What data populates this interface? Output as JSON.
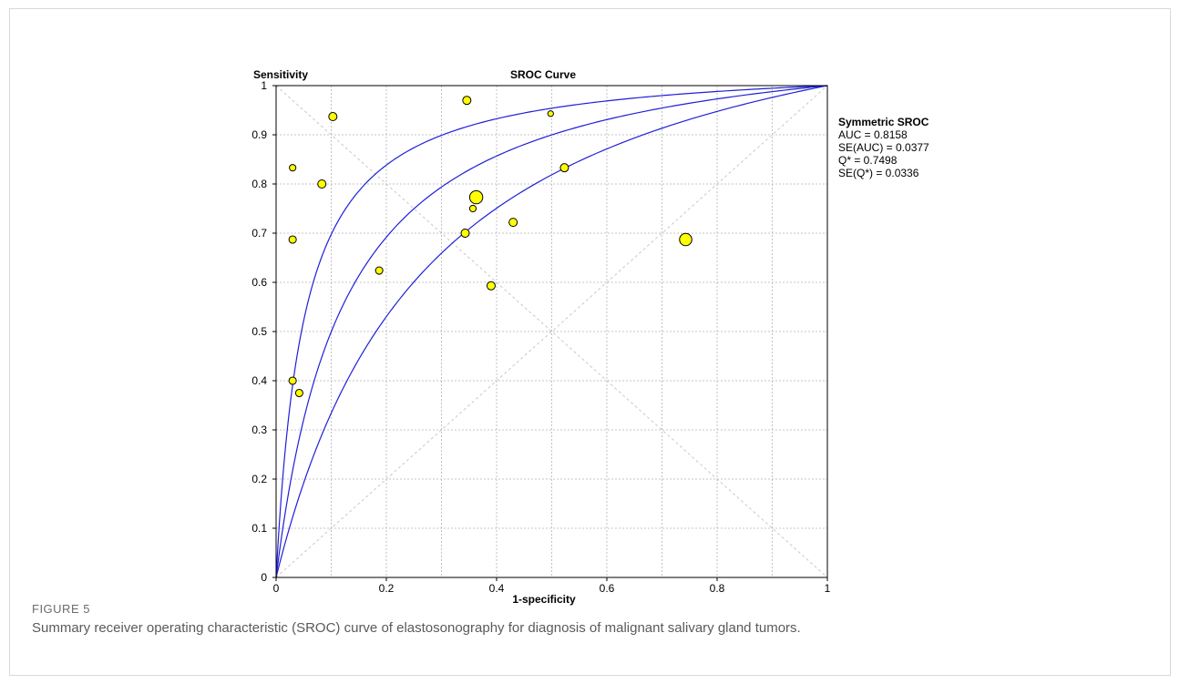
{
  "figure": {
    "label": "FIGURE 5",
    "caption": "Summary receiver operating characteristic (SROC) curve of elastosonography for diagnosis of malignant salivary gland tumors."
  },
  "chart_data": {
    "type": "scatter",
    "title": "SROC Curve",
    "xlabel": "1-specificity",
    "ylabel": "Sensitivity",
    "xlim": [
      0,
      1
    ],
    "ylim": [
      0,
      1
    ],
    "x_ticks": [
      "0",
      "0.2",
      "0.4",
      "0.6",
      "0.8",
      "1"
    ],
    "y_ticks": [
      "0",
      "0.1",
      "0.2",
      "0.3",
      "0.4",
      "0.5",
      "0.6",
      "0.7",
      "0.8",
      "0.9",
      "1"
    ],
    "grid": true,
    "legend_position": "right",
    "stats": {
      "heading": "Symmetric SROC",
      "lines": [
        "AUC = 0.8158",
        "SE(AUC) = 0.0377",
        "Q* = 0.7498",
        "SE(Q*) = 0.0336"
      ]
    },
    "sroc_curves": [
      {
        "role": "upper",
        "q_star": 0.82
      },
      {
        "role": "summary",
        "q_star": 0.7498
      },
      {
        "role": "lower",
        "q_star": 0.68
      }
    ],
    "points": [
      {
        "x": 0.103,
        "y": 0.937,
        "weight": 1.0
      },
      {
        "x": 0.346,
        "y": 0.97,
        "weight": 1.0
      },
      {
        "x": 0.498,
        "y": 0.943,
        "weight": 0.7
      },
      {
        "x": 0.03,
        "y": 0.833,
        "weight": 0.8
      },
      {
        "x": 0.083,
        "y": 0.8,
        "weight": 1.0
      },
      {
        "x": 0.523,
        "y": 0.833,
        "weight": 1.0
      },
      {
        "x": 0.363,
        "y": 0.773,
        "weight": 1.6
      },
      {
        "x": 0.357,
        "y": 0.75,
        "weight": 0.8
      },
      {
        "x": 0.43,
        "y": 0.722,
        "weight": 1.0
      },
      {
        "x": 0.343,
        "y": 0.7,
        "weight": 1.0
      },
      {
        "x": 0.03,
        "y": 0.687,
        "weight": 0.9
      },
      {
        "x": 0.743,
        "y": 0.687,
        "weight": 1.5
      },
      {
        "x": 0.187,
        "y": 0.624,
        "weight": 0.9
      },
      {
        "x": 0.39,
        "y": 0.593,
        "weight": 1.0
      },
      {
        "x": 0.03,
        "y": 0.4,
        "weight": 0.9
      },
      {
        "x": 0.042,
        "y": 0.375,
        "weight": 0.9
      }
    ],
    "colors": {
      "curve": "#1f1fd9",
      "point_fill": "#ffff00",
      "point_stroke": "#000000",
      "grid": "#b4b4b4",
      "diagonal": "#c8c8c8"
    }
  }
}
